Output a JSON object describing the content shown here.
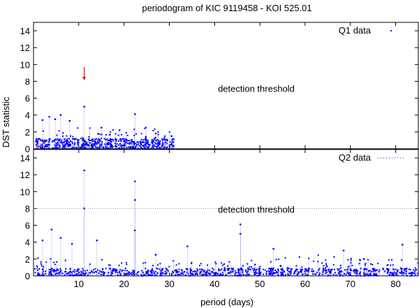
{
  "chart_data": {
    "type": "scatter",
    "title": "periodogram of KIC 9119458 - KOI 525.01",
    "xlabel": "period (days)",
    "ylabel": "DST statistic",
    "xlim": [
      0,
      85
    ],
    "x_ticks": [
      "10",
      "20",
      "30",
      "40",
      "50",
      "60",
      "70",
      "80"
    ],
    "color": "#0000ff",
    "marker_color": "#ff0000",
    "panels": [
      {
        "legend": "Q1 data",
        "legend_position": "top-right",
        "ylim": [
          0,
          15
        ],
        "y_ticks": [
          "0",
          "2",
          "4",
          "6",
          "8",
          "10",
          "12",
          "14"
        ],
        "threshold_label": "detection threshold",
        "threshold_value": 8,
        "threshold_line_visible": false,
        "x_max_data": 31,
        "marker_arrow": {
          "x": 11.2,
          "y_top": 9.7,
          "y_bottom": 8.2
        },
        "peaks": [
          {
            "x": 11.2,
            "y": 5.0
          },
          {
            "x": 22.4,
            "y": 4.1
          },
          {
            "x": 6.0,
            "y": 4.0
          },
          {
            "x": 3.5,
            "y": 3.8
          },
          {
            "x": 2.0,
            "y": 3.4
          },
          {
            "x": 4.8,
            "y": 3.5
          },
          {
            "x": 8.0,
            "y": 3.3
          },
          {
            "x": 15.0,
            "y": 2.5
          },
          {
            "x": 19.0,
            "y": 2.2
          },
          {
            "x": 27.0,
            "y": 1.8
          },
          {
            "x": 30.5,
            "y": 1.5
          }
        ],
        "noise": {
          "x_min": 0.5,
          "x_max": 31,
          "y_base": 1.2,
          "spread": 1.5,
          "count": 520
        }
      },
      {
        "legend": "Q2 data",
        "legend_position": "top-right",
        "ylim": [
          0,
          15
        ],
        "y_ticks": [
          "0",
          "2",
          "4",
          "6",
          "8",
          "10",
          "12",
          "14"
        ],
        "threshold_label": "detection threshold",
        "threshold_value": 8,
        "threshold_line_visible": true,
        "x_max_data": 85,
        "peaks": [
          {
            "x": 11.2,
            "y": 12.5
          },
          {
            "x": 11.2,
            "y": 8.0
          },
          {
            "x": 22.4,
            "y": 11.2
          },
          {
            "x": 22.4,
            "y": 9.0
          },
          {
            "x": 22.4,
            "y": 5.4
          },
          {
            "x": 45.7,
            "y": 6.1
          },
          {
            "x": 45.7,
            "y": 5.0
          },
          {
            "x": 4.0,
            "y": 5.5
          },
          {
            "x": 6.0,
            "y": 4.5
          },
          {
            "x": 2.0,
            "y": 4.2
          },
          {
            "x": 14.0,
            "y": 4.2
          },
          {
            "x": 8.5,
            "y": 3.8
          },
          {
            "x": 53.0,
            "y": 3.2
          },
          {
            "x": 68.5,
            "y": 3.0
          },
          {
            "x": 81.5,
            "y": 3.7
          },
          {
            "x": 34.0,
            "y": 3.5
          },
          {
            "x": 27.0,
            "y": 2.5
          },
          {
            "x": 73.0,
            "y": 2.0
          }
        ],
        "noise": {
          "x_min": 0.3,
          "x_max": 85,
          "y_base": 0.9,
          "spread": 1.6,
          "count": 900
        }
      }
    ]
  }
}
